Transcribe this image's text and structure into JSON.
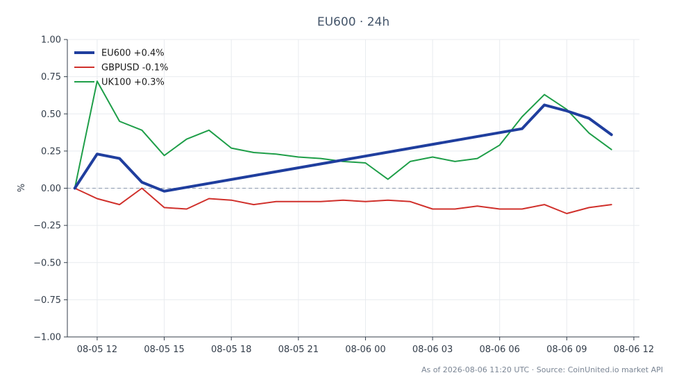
{
  "chart_data": {
    "type": "line",
    "title": "EU600 · 24h",
    "xlabel": "",
    "ylabel": "%",
    "ylim": [
      -1.0,
      1.0
    ],
    "yticks": [
      1.0,
      0.75,
      0.5,
      0.25,
      0.0,
      -0.25,
      -0.5,
      -0.75,
      -1.0
    ],
    "ytick_labels": [
      "1.00",
      "0.75",
      "0.50",
      "0.25",
      "0.00",
      "−0.25",
      "−0.50",
      "−0.75",
      "−1.00"
    ],
    "xlim": [
      "2026-08-05 10:40",
      "2026-08-06 12:15"
    ],
    "xticks": [
      "2026-08-05 12:00",
      "2026-08-05 15:00",
      "2026-08-05 18:00",
      "2026-08-05 21:00",
      "2026-08-06 00:00",
      "2026-08-06 03:00",
      "2026-08-06 06:00",
      "2026-08-06 09:00",
      "2026-08-06 12:00"
    ],
    "xtick_labels": [
      "08-05 12",
      "08-05 15",
      "08-05 18",
      "08-05 21",
      "08-06 00",
      "08-06 03",
      "08-06 06",
      "08-06 09",
      "08-06 12"
    ],
    "grid": true,
    "legend_position": "top-left",
    "reference_line": 0,
    "series": [
      {
        "name": "EU600 +0.4%",
        "color": "#1f3e9e",
        "width": 4,
        "x": [
          "2026-08-05 11:00",
          "2026-08-05 12:00",
          "2026-08-05 13:00",
          "2026-08-05 14:00",
          "2026-08-05 15:00",
          "2026-08-06 07:00",
          "2026-08-06 08:00",
          "2026-08-06 09:00",
          "2026-08-06 10:00",
          "2026-08-06 11:00"
        ],
        "values": [
          0.0,
          0.23,
          0.2,
          0.04,
          -0.02,
          0.4,
          0.56,
          0.52,
          0.47,
          0.36
        ]
      },
      {
        "name": "GBPUSD -0.1%",
        "color": "#d0302b",
        "width": 2,
        "x": [
          "2026-08-05 11:00",
          "2026-08-05 12:00",
          "2026-08-05 13:00",
          "2026-08-05 14:00",
          "2026-08-05 15:00",
          "2026-08-05 16:00",
          "2026-08-05 17:00",
          "2026-08-05 18:00",
          "2026-08-05 19:00",
          "2026-08-05 20:00",
          "2026-08-05 21:00",
          "2026-08-05 22:00",
          "2026-08-05 23:00",
          "2026-08-06 00:00",
          "2026-08-06 01:00",
          "2026-08-06 02:00",
          "2026-08-06 03:00",
          "2026-08-06 04:00",
          "2026-08-06 05:00",
          "2026-08-06 06:00",
          "2026-08-06 07:00",
          "2026-08-06 08:00",
          "2026-08-06 09:00",
          "2026-08-06 10:00",
          "2026-08-06 11:00"
        ],
        "values": [
          0.0,
          -0.07,
          -0.11,
          0.0,
          -0.13,
          -0.14,
          -0.07,
          -0.08,
          -0.11,
          -0.09,
          -0.09,
          -0.09,
          -0.08,
          -0.09,
          -0.08,
          -0.09,
          -0.14,
          -0.14,
          -0.12,
          -0.14,
          -0.14,
          -0.11,
          -0.17,
          -0.13,
          -0.11
        ]
      },
      {
        "name": "UK100 +0.3%",
        "color": "#1e9e48",
        "width": 2,
        "x": [
          "2026-08-05 11:00",
          "2026-08-05 12:00",
          "2026-08-05 13:00",
          "2026-08-05 14:00",
          "2026-08-05 15:00",
          "2026-08-05 16:00",
          "2026-08-05 17:00",
          "2026-08-05 18:00",
          "2026-08-05 19:00",
          "2026-08-05 20:00",
          "2026-08-05 21:00",
          "2026-08-05 22:00",
          "2026-08-05 23:00",
          "2026-08-06 00:00",
          "2026-08-06 01:00",
          "2026-08-06 02:00",
          "2026-08-06 03:00",
          "2026-08-06 04:00",
          "2026-08-06 05:00",
          "2026-08-06 06:00",
          "2026-08-06 07:00",
          "2026-08-06 08:00",
          "2026-08-06 09:00",
          "2026-08-06 10:00",
          "2026-08-06 11:00"
        ],
        "values": [
          0.0,
          0.72,
          0.45,
          0.39,
          0.22,
          0.33,
          0.39,
          0.27,
          0.24,
          0.23,
          0.21,
          0.2,
          0.18,
          0.17,
          0.06,
          0.18,
          0.21,
          0.18,
          0.2,
          0.29,
          0.48,
          0.63,
          0.53,
          0.37,
          0.26
        ]
      }
    ]
  },
  "footer": {
    "text": "As of 2026-08-06 11:20 UTC · Source: CoinUnited.io market API"
  }
}
